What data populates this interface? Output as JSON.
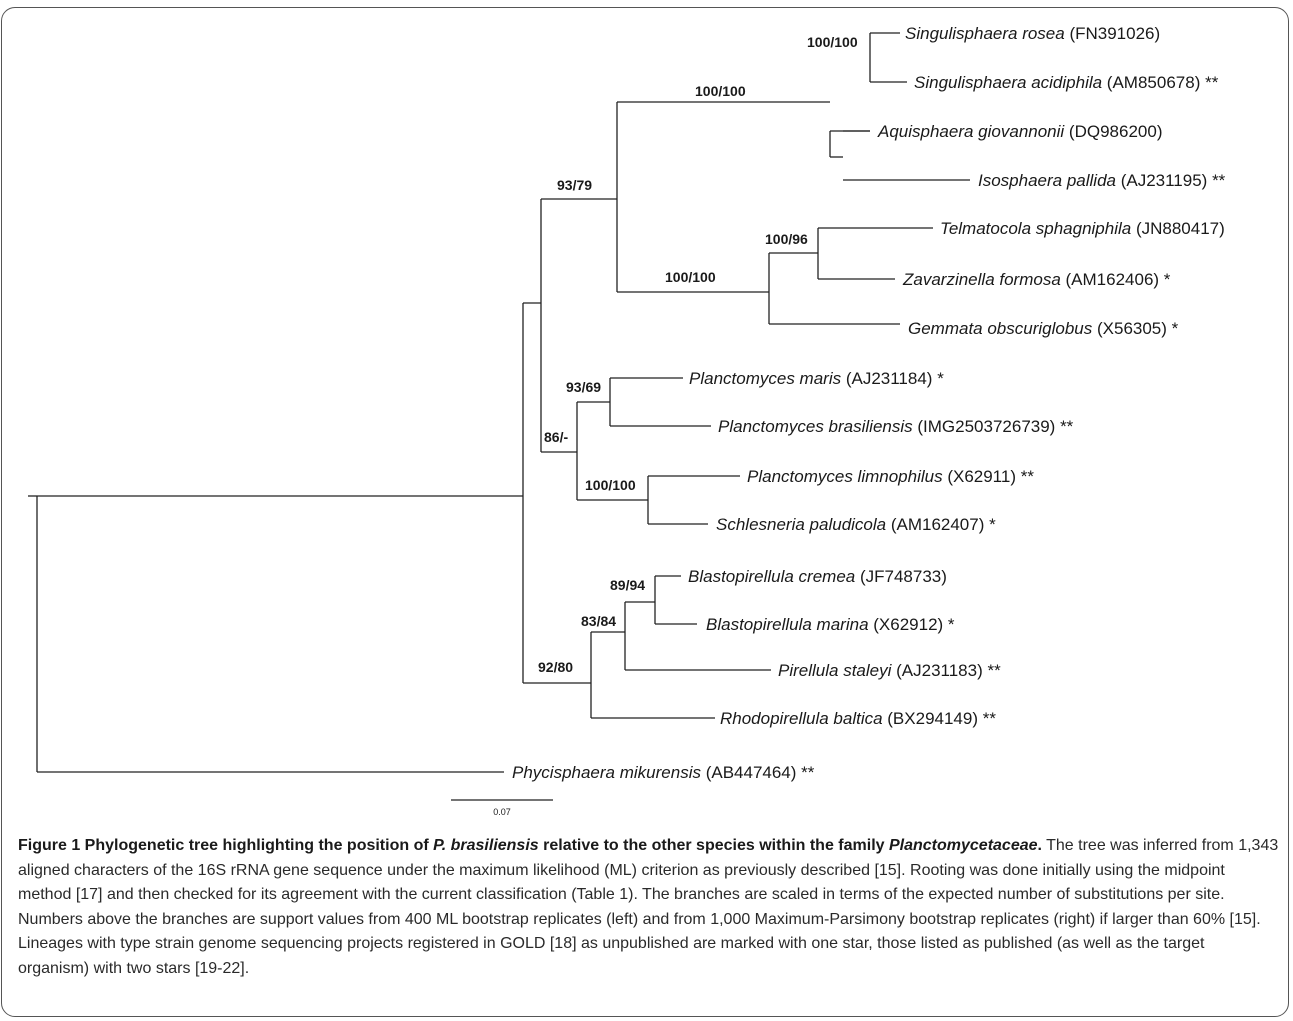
{
  "tree": {
    "labels": [
      {
        "id": "rosea",
        "name": "Singulisphaera rosea",
        "acc": "(FN391026)",
        "mark": ""
      },
      {
        "id": "acidiphila",
        "name": "Singulisphaera acidiphila",
        "acc": "(AM850678)",
        "mark": "**"
      },
      {
        "id": "giovannonii",
        "name": "Aquisphaera giovannonii",
        "acc": "(DQ986200)",
        "mark": ""
      },
      {
        "id": "pallida",
        "name": "Isosphaera pallida",
        "acc": "(AJ231195)",
        "mark": "**"
      },
      {
        "id": "telmatocola",
        "name": "Telmatocola sphagniphila",
        "acc": "(JN880417)",
        "mark": ""
      },
      {
        "id": "zavarzinella",
        "name": "Zavarzinella formosa",
        "acc": "(AM162406)",
        "mark": "*"
      },
      {
        "id": "gemmata",
        "name": "Gemmata obscuriglobus",
        "acc": "(X56305)",
        "mark": "*"
      },
      {
        "id": "maris",
        "name": "Planctomyces maris",
        "acc": "(AJ231184)",
        "mark": "*"
      },
      {
        "id": "brasiliensis",
        "name": "Planctomyces brasiliensis",
        "acc": "(IMG2503726739)",
        "mark": "**"
      },
      {
        "id": "limnophilus",
        "name": "Planctomyces limnophilus",
        "acc": "(X62911)",
        "mark": "**"
      },
      {
        "id": "schlesneria",
        "name": "Schlesneria paludicola",
        "acc": "(AM162407)",
        "mark": "*"
      },
      {
        "id": "cremea",
        "name": "Blastopirellula cremea",
        "acc": "(JF748733)",
        "mark": ""
      },
      {
        "id": "bmarina",
        "name": "Blastopirellula marina",
        "acc": "(X62912)",
        "mark": "*"
      },
      {
        "id": "staleyi",
        "name": "Pirellula staleyi",
        "acc": "(AJ231183)",
        "mark": "**"
      },
      {
        "id": "baltica",
        "name": "Rhodopirellula baltica",
        "acc": "(BX294149)",
        "mark": "**"
      },
      {
        "id": "phycisphaera",
        "name": "Phycisphaera mikurensis",
        "acc": "(AB447464)",
        "mark": "**"
      }
    ],
    "support": [
      {
        "id": "s_singul",
        "text": "100/100"
      },
      {
        "id": "s_isos",
        "text": "100/100"
      },
      {
        "id": "s_top",
        "text": "93/79"
      },
      {
        "id": "s_telm",
        "text": "100/96"
      },
      {
        "id": "s_gemm",
        "text": "100/100"
      },
      {
        "id": "s_maris",
        "text": "93/69"
      },
      {
        "id": "s_planc",
        "text": "86/-"
      },
      {
        "id": "s_limn",
        "text": "100/100"
      },
      {
        "id": "s_blast",
        "text": "89/94"
      },
      {
        "id": "s_pir",
        "text": "83/84"
      },
      {
        "id": "s_pirgrp",
        "text": "92/80"
      }
    ],
    "scale_label": "0.07"
  },
  "caption": {
    "heading_prefix": "Figure 1 Phylogenetic tree highlighting the position of ",
    "heading_species": "P. brasiliensis",
    "heading_mid": " relative to the other species within the family ",
    "heading_family": "Planctomycetaceae",
    "heading_end": ".",
    "body": "The tree was inferred from 1,343 aligned characters of the 16S rRNA gene sequence under the maximum likelihood (ML) criterion as previously described [15]. Rooting was done initially using the midpoint method [17] and then checked for its agreement with the current classification (Table 1). The branches are scaled in terms of the expected number of substitutions per site. Numbers above the branches are support values from 400 ML bootstrap replicates (left) and from 1,000 Maximum-Parsimony bootstrap replicates (right) if larger than 60% [15]. Lineages with type strain genome sequencing projects registered in GOLD [18] as unpublished are marked with one star, those listed as published (as well as the target organism) with two stars [19-22]."
  }
}
